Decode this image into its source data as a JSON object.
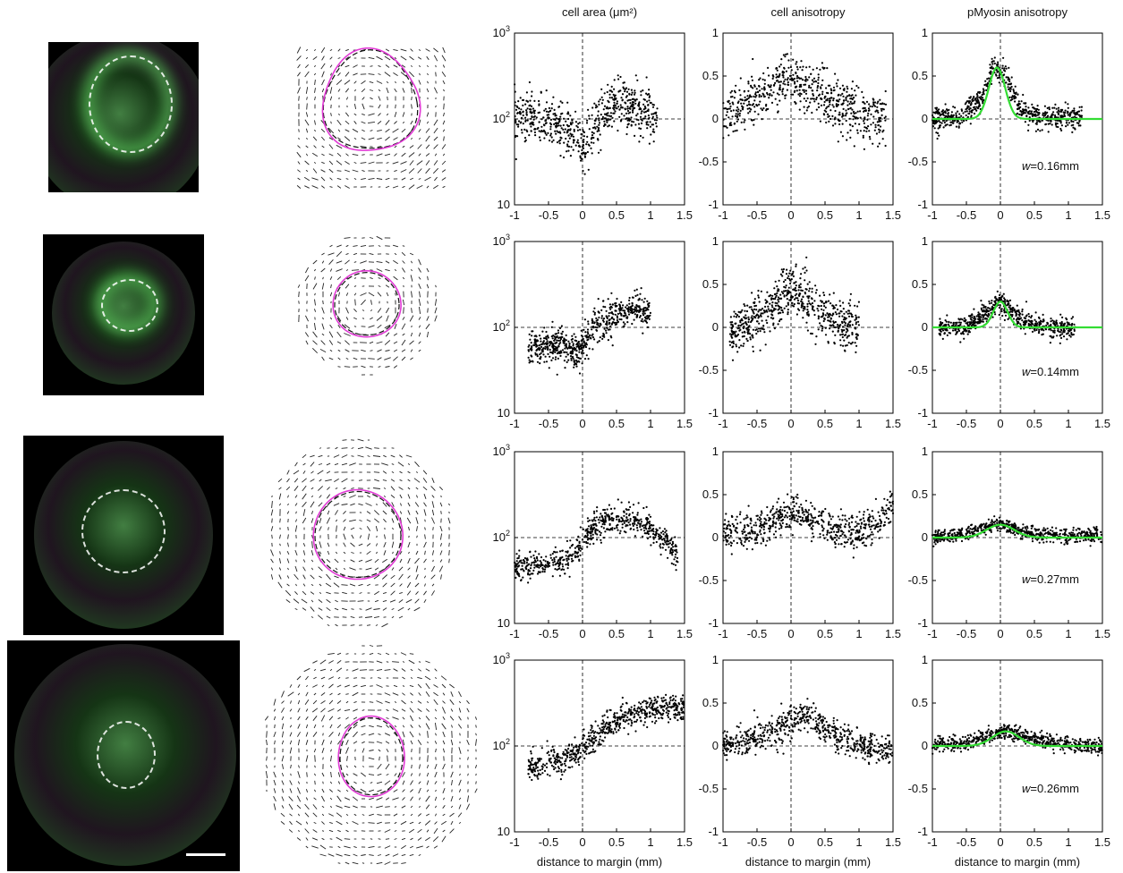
{
  "column_titles": {
    "area": "cell area (μm²)",
    "cell_aniso": "cell anisotropy",
    "myo_aniso": "pMyosin anisotropy"
  },
  "xlabel": "distance to margin (mm)",
  "colors": {
    "fit": "#33dd33",
    "margin_outline": "#e23bd6",
    "points": "#000000"
  },
  "rows": [
    {
      "w_label": "w=0.16mm"
    },
    {
      "w_label": "w=0.14mm"
    },
    {
      "w_label": "w=0.27mm"
    },
    {
      "w_label": "w=0.26mm"
    }
  ],
  "chart_data": [
    {
      "type": "scatter",
      "row": 1,
      "title": "cell area (μm²)",
      "xlim": [
        -1,
        1.5
      ],
      "ylim": [
        10,
        1000
      ],
      "yscale": "log",
      "xticks": [
        "-1",
        "-0.5",
        "0",
        "0.5",
        "1",
        "1.5"
      ],
      "yticks": [
        "10",
        "10²",
        "10³"
      ],
      "trend_x": [
        -1,
        -0.6,
        -0.3,
        -0.1,
        0,
        0.1,
        0.3,
        0.5,
        0.8,
        1.1
      ],
      "trend_y": [
        105,
        95,
        80,
        60,
        45,
        60,
        120,
        160,
        130,
        110
      ],
      "spread": 0.14
    },
    {
      "type": "scatter",
      "row": 1,
      "title": "cell anisotropy",
      "xlim": [
        -1,
        1.5
      ],
      "ylim": [
        -1,
        1
      ],
      "xticks": [
        "-1",
        "-0.5",
        "0",
        "0.5",
        "1",
        "1.5"
      ],
      "yticks": [
        "-1",
        "-0.5",
        "0",
        "0.5",
        "1"
      ],
      "trend_x": [
        -1,
        -0.5,
        0,
        0.3,
        0.6,
        1.0,
        1.4
      ],
      "trend_y": [
        0.05,
        0.25,
        0.45,
        0.35,
        0.2,
        0.05,
        0.0
      ],
      "spread": 0.15
    },
    {
      "type": "scatter",
      "row": 1,
      "title": "pMyosin anisotropy",
      "xlim": [
        -1,
        1.5
      ],
      "ylim": [
        -1,
        1
      ],
      "xticks": [
        "-1",
        "-0.5",
        "0",
        "0.5",
        "1",
        "1.5"
      ],
      "yticks": [
        "-1",
        "-0.5",
        "0",
        "0.5",
        "1"
      ],
      "trend_x": [
        -1,
        -0.6,
        -0.3,
        -0.1,
        0.05,
        0.3,
        0.6,
        1.0,
        1.2
      ],
      "trend_y": [
        0.0,
        0.02,
        0.2,
        0.6,
        0.55,
        0.1,
        0.02,
        0.01,
        0.0
      ],
      "spread": 0.07,
      "fit_peak": 0.6,
      "fit_center": -0.05,
      "fit_w": 0.16
    },
    {
      "type": "scatter",
      "row": 2,
      "title": "cell area (μm²)",
      "xlim": [
        -1,
        1.5
      ],
      "ylim": [
        10,
        1000
      ],
      "yscale": "log",
      "xticks": [
        "-1",
        "-0.5",
        "0",
        "0.5",
        "1",
        "1.5"
      ],
      "yticks": [
        "10",
        "10²",
        "10³"
      ],
      "trend_x": [
        -0.8,
        -0.4,
        -0.1,
        0,
        0.2,
        0.5,
        0.8,
        1.0
      ],
      "trend_y": [
        60,
        62,
        55,
        60,
        100,
        140,
        170,
        140
      ],
      "spread": 0.1
    },
    {
      "type": "scatter",
      "row": 2,
      "title": "cell anisotropy",
      "xlim": [
        -1,
        1.5
      ],
      "ylim": [
        -1,
        1
      ],
      "xticks": [
        "-1",
        "-0.5",
        "0",
        "0.5",
        "1",
        "1.5"
      ],
      "yticks": [
        "-1",
        "-0.5",
        "0",
        "0.5",
        "1"
      ],
      "trend_x": [
        -0.9,
        -0.4,
        0,
        0.1,
        0.4,
        0.7,
        1.0
      ],
      "trend_y": [
        -0.1,
        0.15,
        0.45,
        0.4,
        0.2,
        0.05,
        0.0
      ],
      "spread": 0.14
    },
    {
      "type": "scatter",
      "row": 2,
      "title": "pMyosin anisotropy",
      "xlim": [
        -1,
        1.5
      ],
      "ylim": [
        -1,
        1
      ],
      "xticks": [
        "-1",
        "-0.5",
        "0",
        "0.5",
        "1",
        "1.5"
      ],
      "yticks": [
        "-1",
        "-0.5",
        "0",
        "0.5",
        "1"
      ],
      "trend_x": [
        -0.9,
        -0.5,
        -0.2,
        0,
        0.2,
        0.5,
        0.8,
        1.1
      ],
      "trend_y": [
        0.0,
        0.02,
        0.15,
        0.3,
        0.15,
        0.02,
        0.0,
        0.0
      ],
      "spread": 0.06,
      "fit_peak": 0.3,
      "fit_center": 0.0,
      "fit_w": 0.14
    },
    {
      "type": "scatter",
      "row": 3,
      "title": "cell area (μm²)",
      "xlim": [
        -1,
        1.5
      ],
      "ylim": [
        10,
        1000
      ],
      "yscale": "log",
      "xticks": [
        "-1",
        "-0.5",
        "0",
        "0.5",
        "1",
        "1.5"
      ],
      "yticks": [
        "10",
        "10²",
        "10³"
      ],
      "trend_x": [
        -1,
        -0.5,
        -0.1,
        0,
        0.2,
        0.5,
        0.8,
        1.1,
        1.4
      ],
      "trend_y": [
        45,
        50,
        60,
        90,
        140,
        160,
        160,
        110,
        60
      ],
      "spread": 0.08
    },
    {
      "type": "scatter",
      "row": 3,
      "title": "cell anisotropy",
      "xlim": [
        -1,
        1.5
      ],
      "ylim": [
        -1,
        1
      ],
      "xticks": [
        "-1",
        "-0.5",
        "0",
        "0.5",
        "1",
        "1.5"
      ],
      "yticks": [
        "-1",
        "-0.5",
        "0",
        "0.5",
        "1"
      ],
      "trend_x": [
        -1,
        -0.5,
        0,
        0.2,
        0.6,
        1.0,
        1.3,
        1.5
      ],
      "trend_y": [
        0.05,
        0.1,
        0.3,
        0.25,
        0.1,
        0.05,
        0.2,
        0.4
      ],
      "spread": 0.1
    },
    {
      "type": "scatter",
      "row": 3,
      "title": "pMyosin anisotropy",
      "xlim": [
        -1,
        1.5
      ],
      "ylim": [
        -1,
        1
      ],
      "xticks": [
        "-1",
        "-0.5",
        "0",
        "0.5",
        "1",
        "1.5"
      ],
      "yticks": [
        "-1",
        "-0.5",
        "0",
        "0.5",
        "1"
      ],
      "trend_x": [
        -1,
        -0.5,
        -0.2,
        0,
        0.3,
        0.7,
        1.1,
        1.5
      ],
      "trend_y": [
        0.0,
        0.05,
        0.12,
        0.15,
        0.08,
        0.02,
        0.02,
        0.02
      ],
      "spread": 0.04,
      "fit_peak": 0.15,
      "fit_center": 0.0,
      "fit_w": 0.27
    },
    {
      "type": "scatter",
      "row": 4,
      "title": "cell area (μm²)",
      "xlim": [
        -1,
        1.5
      ],
      "ylim": [
        10,
        1000
      ],
      "yscale": "log",
      "xticks": [
        "-1",
        "-0.5",
        "0",
        "0.5",
        "1",
        "1.5"
      ],
      "yticks": [
        "10",
        "10²",
        "10³"
      ],
      "trend_x": [
        -0.8,
        -0.4,
        -0.1,
        0,
        0.3,
        0.6,
        0.9,
        1.2,
        1.5
      ],
      "trend_y": [
        55,
        65,
        80,
        95,
        150,
        220,
        260,
        280,
        270
      ],
      "spread": 0.08
    },
    {
      "type": "scatter",
      "row": 4,
      "title": "cell anisotropy",
      "xlim": [
        -1,
        1.5
      ],
      "ylim": [
        -1,
        1
      ],
      "xticks": [
        "-1",
        "-0.5",
        "0",
        "0.5",
        "1",
        "1.5"
      ],
      "yticks": [
        "-1",
        "-0.5",
        "0",
        "0.5",
        "1"
      ],
      "trend_x": [
        -1,
        -0.5,
        0,
        0.2,
        0.5,
        0.9,
        1.2,
        1.5
      ],
      "trend_y": [
        0.0,
        0.1,
        0.25,
        0.35,
        0.2,
        0.05,
        0.0,
        -0.05
      ],
      "spread": 0.09
    },
    {
      "type": "scatter",
      "row": 4,
      "title": "pMyosin anisotropy",
      "xlim": [
        -1,
        1.5
      ],
      "ylim": [
        -1,
        1
      ],
      "xticks": [
        "-1",
        "-0.5",
        "0",
        "0.5",
        "1",
        "1.5"
      ],
      "yticks": [
        "-1",
        "-0.5",
        "0",
        "0.5",
        "1"
      ],
      "trend_x": [
        -1,
        -0.5,
        -0.2,
        0,
        0.1,
        0.4,
        0.8,
        1.2,
        1.5
      ],
      "trend_y": [
        0.0,
        0.04,
        0.12,
        0.15,
        0.17,
        0.1,
        0.03,
        0.01,
        0.0
      ],
      "spread": 0.04,
      "fit_peak": 0.17,
      "fit_center": 0.08,
      "fit_w": 0.26
    }
  ]
}
